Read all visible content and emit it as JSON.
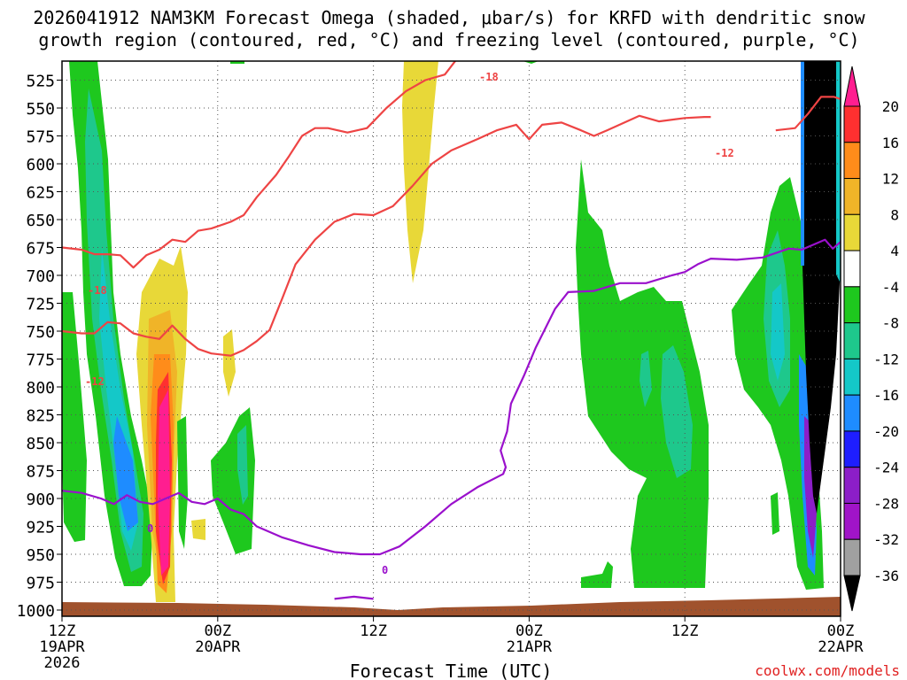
{
  "chart_data": {
    "type": "heatmap",
    "title": "2026041912 NAM3KM Forecast Omega (shaded, μbar/s) for KRFD with dendritic snow growth region (contoured, red, °C) and freezing level (contoured, purple, °C)",
    "title_line1": "2026041912 NAM3KM Forecast Omega (shaded, μbar/s) for KRFD with dendritic snow",
    "title_line2": "growth region (contoured, red, °C) and freezing level (contoured, purple, °C)",
    "xlabel": "Forecast Time (UTC)",
    "ylabel": "",
    "credit": "coolwx.com/models",
    "x_ticks": [
      {
        "hour": 0,
        "lines": [
          "12Z",
          "19APR",
          "2026"
        ]
      },
      {
        "hour": 12,
        "lines": [
          "00Z",
          "20APR"
        ]
      },
      {
        "hour": 24,
        "lines": [
          "12Z"
        ]
      },
      {
        "hour": 36,
        "lines": [
          "00Z",
          "21APR"
        ]
      },
      {
        "hour": 48,
        "lines": [
          "12Z"
        ]
      },
      {
        "hour": 60,
        "lines": [
          "00Z",
          "22APR"
        ]
      }
    ],
    "xlim": [
      0,
      60
    ],
    "y_levels": [
      525,
      550,
      575,
      600,
      625,
      650,
      675,
      700,
      725,
      750,
      775,
      800,
      825,
      850,
      875,
      900,
      925,
      950,
      975,
      1000
    ],
    "ylim_hpa": [
      500,
      1000
    ],
    "grid": true,
    "colorbar": {
      "labels": [
        "20",
        "16",
        "12",
        "8",
        "4",
        "-4",
        "-8",
        "-12",
        "-16",
        "-20",
        "-24",
        "-28",
        "-32",
        "-36"
      ],
      "colors": [
        "#ff1e90",
        "#ff3030",
        "#ff8c1a",
        "#f0b428",
        "#e8d838",
        "#ffffff",
        "#1ec81e",
        "#1ec88c",
        "#14c8c8",
        "#1e8cff",
        "#1e1eff",
        "#8c1ec8",
        "#a014c8",
        "#a0a0a0",
        "#000000"
      ]
    },
    "contour_labels": {
      "red": [
        "-18",
        "-12",
        "-18",
        "-12"
      ],
      "purple": [
        "0",
        "0"
      ]
    },
    "series": [
      {
        "color": "#ee4444",
        "kind": "dendritic",
        "label": "-18",
        "points": [
          [
            0,
            675
          ],
          [
            1.5,
            677
          ],
          [
            2.5,
            681
          ],
          [
            3.5,
            681
          ],
          [
            4.5,
            682
          ],
          [
            5.5,
            693
          ],
          [
            6.5,
            682
          ],
          [
            7.5,
            677
          ],
          [
            8.5,
            668
          ],
          [
            9.5,
            670
          ],
          [
            10.5,
            660
          ],
          [
            11.5,
            658
          ],
          [
            13,
            652
          ],
          [
            14,
            646
          ],
          [
            15,
            630
          ],
          [
            16.5,
            610
          ],
          [
            17.5,
            593
          ],
          [
            18.5,
            575
          ],
          [
            19.5,
            568
          ],
          [
            20.5,
            568
          ],
          [
            22,
            572
          ],
          [
            23.5,
            568
          ],
          [
            25,
            550
          ],
          [
            26.5,
            535
          ],
          [
            28,
            525
          ],
          [
            29.5,
            520
          ],
          [
            30.5,
            505
          ],
          [
            31.5,
            505
          ],
          [
            32.5,
            500
          ]
        ]
      },
      {
        "color": "#ee4444",
        "kind": "dendritic",
        "label": "-12",
        "points": [
          [
            0,
            750
          ],
          [
            1.5,
            752
          ],
          [
            2.5,
            752
          ],
          [
            3.5,
            742
          ],
          [
            4.5,
            743
          ],
          [
            5.5,
            752
          ],
          [
            6.5,
            755
          ],
          [
            7.5,
            757
          ],
          [
            8.5,
            745
          ],
          [
            9.5,
            757
          ],
          [
            10.5,
            766
          ],
          [
            11.5,
            770
          ],
          [
            13,
            772
          ],
          [
            14,
            767
          ],
          [
            15,
            759
          ],
          [
            16,
            749
          ],
          [
            17,
            720
          ],
          [
            18,
            690
          ],
          [
            19.5,
            668
          ],
          [
            21,
            652
          ],
          [
            22.5,
            645
          ],
          [
            24,
            646
          ],
          [
            25.5,
            638
          ],
          [
            27,
            620
          ],
          [
            28.5,
            600
          ],
          [
            30,
            588
          ],
          [
            32,
            578
          ],
          [
            33.5,
            570
          ],
          [
            35,
            565
          ],
          [
            36,
            578
          ],
          [
            37,
            565
          ],
          [
            38.5,
            563
          ],
          [
            40,
            570
          ],
          [
            41,
            575
          ],
          [
            42,
            570
          ],
          [
            44.5,
            557
          ],
          [
            46,
            562
          ],
          [
            48,
            559
          ],
          [
            49.5,
            558
          ],
          [
            50,
            558
          ]
        ]
      },
      {
        "color": "#ee4444",
        "kind": "dendritic",
        "label": "-12",
        "points": [
          [
            55,
            570
          ],
          [
            56.5,
            568
          ],
          [
            57.5,
            555
          ],
          [
            58.5,
            540
          ],
          [
            59.5,
            540
          ],
          [
            60,
            542
          ]
        ]
      },
      {
        "color": "#9a10cc",
        "kind": "freezing",
        "label": "0",
        "points": [
          [
            0,
            893
          ],
          [
            1.5,
            895
          ],
          [
            3,
            900
          ],
          [
            4,
            905
          ],
          [
            5,
            897
          ],
          [
            6,
            903
          ],
          [
            7,
            905
          ],
          [
            8,
            900
          ],
          [
            9,
            895
          ],
          [
            10,
            903
          ],
          [
            11,
            905
          ],
          [
            12,
            900
          ],
          [
            13,
            910
          ],
          [
            14,
            914
          ],
          [
            15,
            925
          ],
          [
            17,
            935
          ],
          [
            19,
            942
          ],
          [
            21,
            948
          ],
          [
            23,
            950
          ],
          [
            24.5,
            950
          ],
          [
            26,
            943
          ],
          [
            28,
            925
          ],
          [
            30,
            905
          ],
          [
            32,
            890
          ],
          [
            34,
            878
          ],
          [
            34.2,
            872
          ],
          [
            33.8,
            857
          ],
          [
            34.3,
            840
          ],
          [
            34.6,
            815
          ],
          [
            35.6,
            790
          ],
          [
            36.5,
            765
          ],
          [
            38,
            730
          ],
          [
            39,
            715
          ],
          [
            41,
            714
          ],
          [
            43,
            707
          ],
          [
            45,
            707
          ],
          [
            47,
            700
          ],
          [
            48,
            697
          ],
          [
            49,
            690
          ],
          [
            50,
            685
          ],
          [
            52,
            686
          ],
          [
            54,
            684
          ],
          [
            56,
            676
          ],
          [
            57,
            677
          ],
          [
            58,
            672
          ],
          [
            58.8,
            668
          ],
          [
            59.4,
            676
          ],
          [
            60,
            670
          ]
        ]
      },
      {
        "color": "#9a10cc",
        "kind": "freezing",
        "label": "",
        "points": [
          [
            21,
            990
          ],
          [
            22.5,
            988
          ],
          [
            24,
            990
          ]
        ]
      }
    ]
  }
}
